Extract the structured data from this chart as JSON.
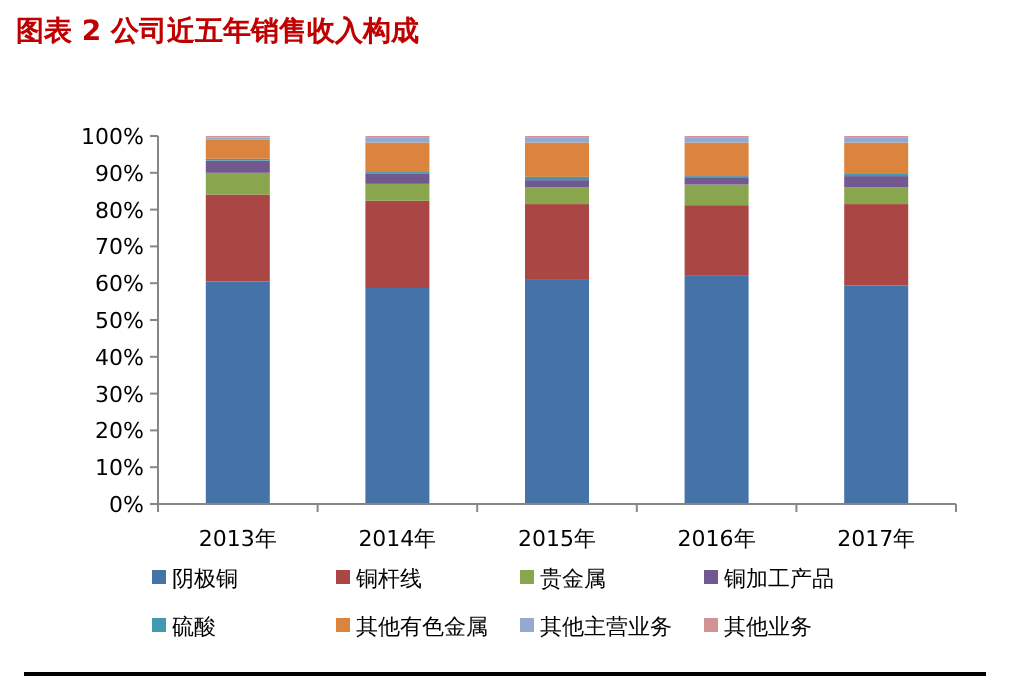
{
  "chart_data": {
    "type": "bar",
    "title": "图表 2 公司近五年销售收入构成",
    "stacked": true,
    "categories": [
      "2013年",
      "2014年",
      "2015年",
      "2016年",
      "2017年"
    ],
    "ylim": [
      0,
      100
    ],
    "yticks": [
      {
        "value": 0,
        "label": "0%"
      },
      {
        "value": 10,
        "label": "10%"
      },
      {
        "value": 20,
        "label": "20%"
      },
      {
        "value": 30,
        "label": "30%"
      },
      {
        "value": 40,
        "label": "40%"
      },
      {
        "value": 50,
        "label": "50%"
      },
      {
        "value": 60,
        "label": "60%"
      },
      {
        "value": 70,
        "label": "70%"
      },
      {
        "value": 80,
        "label": "80%"
      },
      {
        "value": 90,
        "label": "90%"
      },
      {
        "value": 100,
        "label": "100%"
      }
    ],
    "grid": false,
    "legend": "bottom",
    "series": [
      {
        "name": "阴极铜",
        "color": "#4572a7",
        "values": [
          60.5,
          58.7,
          60.9,
          62.0,
          59.4
        ]
      },
      {
        "name": "铜杆线",
        "color": "#aa4643",
        "values": [
          23.6,
          23.7,
          20.6,
          19.2,
          22.1
        ]
      },
      {
        "name": "贵金属",
        "color": "#89a54e",
        "values": [
          5.9,
          4.6,
          4.6,
          5.6,
          4.6
        ]
      },
      {
        "name": "铜加工产品",
        "color": "#71588f",
        "values": [
          3.3,
          2.7,
          1.9,
          1.8,
          3.0
        ]
      },
      {
        "name": "硫酸",
        "color": "#4198af",
        "values": [
          0.5,
          0.5,
          0.9,
          0.5,
          0.8
        ]
      },
      {
        "name": "其他有色金属",
        "color": "#db843d",
        "values": [
          5.3,
          8.0,
          9.3,
          9.1,
          8.3
        ]
      },
      {
        "name": "其他主营业务",
        "color": "#93a9cf",
        "values": [
          0.5,
          1.3,
          1.3,
          1.3,
          1.3
        ]
      },
      {
        "name": "其他业务",
        "color": "#d19392",
        "values": [
          0.4,
          0.5,
          0.5,
          0.5,
          0.5
        ]
      }
    ]
  }
}
